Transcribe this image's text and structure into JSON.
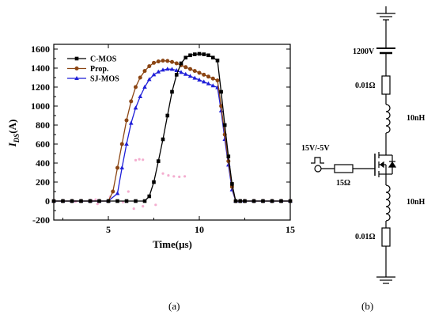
{
  "chart_data": {
    "type": "line",
    "xlabel": "Time(μs)",
    "ylabel_main": "I",
    "ylabel_sub": "DS",
    "ylabel_unit": "(A)",
    "xlim": [
      2,
      15
    ],
    "ylim": [
      -200,
      1650
    ],
    "x_ticks": [
      5,
      10,
      15
    ],
    "y_ticks": [
      -200,
      0,
      200,
      400,
      600,
      800,
      1000,
      1200,
      1400,
      1600
    ],
    "legend_position": "top-left",
    "series": [
      {
        "name": "C-MOS",
        "color": "#000000",
        "marker": "square",
        "x": [
          2,
          2.5,
          3,
          3.5,
          4,
          4.5,
          5,
          5.5,
          6,
          6.5,
          7,
          7.25,
          7.5,
          7.75,
          8,
          8.25,
          8.5,
          8.75,
          9,
          9.25,
          9.5,
          9.75,
          10,
          10.25,
          10.5,
          10.75,
          11,
          11.2,
          11.4,
          11.6,
          11.8,
          12,
          12.25,
          12.5,
          13,
          13.5,
          14,
          14.5,
          15
        ],
        "values": [
          0,
          0,
          0,
          0,
          0,
          0,
          0,
          0,
          0,
          0,
          0,
          50,
          200,
          420,
          650,
          900,
          1150,
          1330,
          1450,
          1510,
          1535,
          1545,
          1550,
          1545,
          1535,
          1510,
          1480,
          1150,
          800,
          470,
          180,
          0,
          0,
          0,
          0,
          0,
          0,
          0,
          0
        ]
      },
      {
        "name": "Prop.",
        "color": "#8B4513",
        "marker": "circle",
        "x": [
          2,
          2.5,
          3,
          3.5,
          4,
          4.5,
          5,
          5.25,
          5.5,
          5.75,
          6,
          6.25,
          6.5,
          6.75,
          7,
          7.25,
          7.5,
          7.75,
          8,
          8.25,
          8.5,
          8.75,
          9,
          9.25,
          9.5,
          9.75,
          10,
          10.25,
          10.5,
          10.75,
          11,
          11.2,
          11.4,
          11.6,
          11.8,
          12,
          12.25,
          12.5,
          13,
          13.5,
          14,
          14.5,
          15
        ],
        "values": [
          0,
          0,
          0,
          0,
          0,
          0,
          0,
          100,
          350,
          600,
          850,
          1050,
          1200,
          1300,
          1370,
          1420,
          1455,
          1470,
          1478,
          1475,
          1465,
          1450,
          1430,
          1410,
          1390,
          1370,
          1350,
          1330,
          1310,
          1290,
          1270,
          1000,
          700,
          420,
          150,
          0,
          0,
          0,
          0,
          0,
          0,
          0,
          0
        ]
      },
      {
        "name": "SJ-MOS",
        "color": "#1f1fd8",
        "marker": "triangle",
        "x": [
          2,
          2.5,
          3,
          3.5,
          4,
          4.5,
          5,
          5.5,
          5.75,
          6,
          6.25,
          6.5,
          6.75,
          7,
          7.25,
          7.5,
          7.75,
          8,
          8.25,
          8.5,
          8.75,
          9,
          9.25,
          9.5,
          9.75,
          10,
          10.25,
          10.5,
          10.75,
          11,
          11.2,
          11.4,
          11.6,
          11.8,
          12,
          12.25,
          12.5,
          13,
          13.5,
          14,
          14.5,
          15
        ],
        "values": [
          0,
          0,
          0,
          0,
          0,
          0,
          0,
          80,
          350,
          600,
          820,
          980,
          1100,
          1200,
          1280,
          1330,
          1360,
          1380,
          1390,
          1388,
          1375,
          1355,
          1335,
          1315,
          1295,
          1275,
          1255,
          1235,
          1215,
          1195,
          950,
          650,
          380,
          120,
          0,
          0,
          0,
          0,
          0,
          0,
          0,
          0
        ]
      }
    ]
  },
  "circuit": {
    "voltage_label": "1200V",
    "resistor_top_label": "0.01Ω",
    "inductor_top_label": "10nH",
    "gate_source_label": "15V/-5V",
    "gate_resistor_label": "15Ω",
    "inductor_bottom_label": "10nH",
    "resistor_bottom_label": "0.01Ω"
  },
  "panel_labels": {
    "a": "(a)",
    "b": "(b)"
  }
}
